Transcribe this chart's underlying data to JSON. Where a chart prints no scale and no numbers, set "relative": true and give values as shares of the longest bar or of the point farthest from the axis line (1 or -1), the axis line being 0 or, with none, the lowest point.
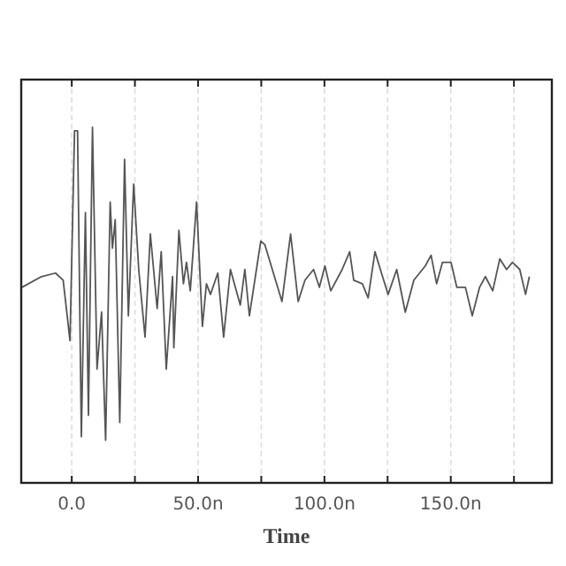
{
  "chart_data": {
    "type": "line",
    "xlabel": "Time",
    "relative": true,
    "grid": "x",
    "xlim": [
      -20,
      190
    ],
    "xticks": [
      {
        "value": 0,
        "label": "0.0"
      },
      {
        "value": 25,
        "label": null
      },
      {
        "value": 50,
        "label": "50.0n"
      },
      {
        "value": 75,
        "label": null
      },
      {
        "value": 100,
        "label": "100.0n"
      },
      {
        "value": 125,
        "label": null
      },
      {
        "value": 150,
        "label": "150.0n"
      },
      {
        "value": 175,
        "label": null
      }
    ],
    "series": [
      {
        "color": "#555555",
        "x": [
          -19.7,
          -12,
          -6.4,
          -3.4,
          -0.7,
          1.1,
          2.3,
          3.8,
          5.4,
          6.6,
          8.2,
          10.0,
          11.8,
          13.4,
          15.2,
          16.1,
          17.2,
          19.0,
          20.9,
          22.4,
          24.5,
          26.5,
          29.0,
          31.1,
          33.8,
          35.4,
          37.4,
          39.9,
          40.4,
          42.4,
          44.2,
          45.4,
          46.9,
          49.4,
          51.7,
          53.3,
          54.9,
          57.8,
          60.1,
          62.8,
          66.7,
          68.5,
          70.3,
          74.8,
          76.4,
          79.8,
          83.2,
          86.6,
          89.6,
          92.3,
          95.7,
          98.0,
          100.2,
          102.5,
          107.0,
          110.0,
          111.6,
          115.0,
          117.3,
          120.0,
          123.0,
          125.2,
          128.6,
          132.0,
          135.4,
          139.9,
          142.2,
          144.4,
          146.7,
          150.1,
          152.4,
          155.8,
          158.5,
          161.4,
          163.7,
          166.6,
          169.4,
          172.1,
          174.4,
          177.3,
          179.6,
          181.1
        ],
        "values": [
          0.55,
          0.58,
          0.59,
          0.57,
          0.4,
          0.99,
          0.99,
          0.13,
          0.76,
          0.19,
          1,
          0.32,
          0.48,
          0.12,
          0.79,
          0.66,
          0.74,
          0.17,
          0.91,
          0.47,
          0.84,
          0.6,
          0.41,
          0.7,
          0.49,
          0.65,
          0.32,
          0.58,
          0.38,
          0.71,
          0.56,
          0.62,
          0.54,
          0.79,
          0.44,
          0.56,
          0.53,
          0.59,
          0.41,
          0.6,
          0.5,
          0.6,
          0.47,
          0.68,
          0.67,
          0.59,
          0.51,
          0.7,
          0.51,
          0.57,
          0.6,
          0.55,
          0.61,
          0.54,
          0.6,
          0.65,
          0.57,
          0.56,
          0.52,
          0.65,
          0.58,
          0.53,
          0.6,
          0.48,
          0.57,
          0.61,
          0.64,
          0.56,
          0.62,
          0.62,
          0.55,
          0.55,
          0.47,
          0.55,
          0.58,
          0.54,
          0.63,
          0.6,
          0.62,
          0.6,
          0.53,
          0.58
        ]
      }
    ]
  }
}
